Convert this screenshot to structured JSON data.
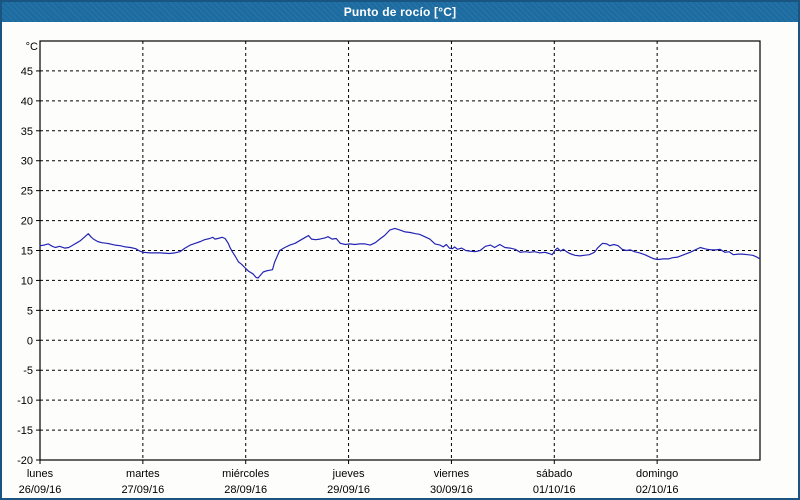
{
  "window": {
    "title": "Punto de rocío [°C]"
  },
  "colors": {
    "titlebar_bg": "#1d6ca1",
    "window_border": "#1a5480",
    "background": "#fdfefb",
    "line": "#2424b4",
    "grid": "#000000",
    "text": "#000000",
    "title_text": "#ffffff"
  },
  "chart_data": {
    "type": "line",
    "title": "Punto de rocío [°C]",
    "ylabel": "°C",
    "xlabel": "",
    "ylim": [
      -20,
      50
    ],
    "xlim_days": [
      0,
      7
    ],
    "grid": "dashed",
    "legend": "none",
    "y_ticks": [
      45,
      40,
      35,
      30,
      25,
      20,
      15,
      10,
      5,
      0,
      -5,
      -10,
      -15,
      -20
    ],
    "x_days": [
      {
        "name": "lunes",
        "date": "26/09/16"
      },
      {
        "name": "martes",
        "date": "27/09/16"
      },
      {
        "name": "miércoles",
        "date": "28/09/16"
      },
      {
        "name": "jueves",
        "date": "29/09/16"
      },
      {
        "name": "viernes",
        "date": "30/09/16"
      },
      {
        "name": "sábado",
        "date": "01/10/16"
      },
      {
        "name": "domingo",
        "date": "02/10/16"
      }
    ],
    "series": [
      {
        "name": "Punto de rocío",
        "color": "#2424b4",
        "points": [
          [
            0.0,
            15.8
          ],
          [
            0.04,
            15.9
          ],
          [
            0.08,
            16.1
          ],
          [
            0.12,
            15.7
          ],
          [
            0.15,
            15.5
          ],
          [
            0.19,
            15.7
          ],
          [
            0.24,
            15.4
          ],
          [
            0.28,
            15.5
          ],
          [
            0.32,
            15.9
          ],
          [
            0.36,
            16.3
          ],
          [
            0.39,
            16.6
          ],
          [
            0.43,
            17.2
          ],
          [
            0.47,
            17.8
          ],
          [
            0.5,
            17.2
          ],
          [
            0.52,
            16.9
          ],
          [
            0.56,
            16.5
          ],
          [
            0.6,
            16.3
          ],
          [
            0.65,
            16.2
          ],
          [
            0.68,
            16.1
          ],
          [
            0.73,
            15.9
          ],
          [
            0.78,
            15.8
          ],
          [
            0.83,
            15.6
          ],
          [
            0.88,
            15.5
          ],
          [
            0.93,
            15.3
          ],
          [
            0.97,
            14.9
          ],
          [
            1.0,
            14.7
          ],
          [
            1.07,
            14.6
          ],
          [
            1.17,
            14.6
          ],
          [
            1.26,
            14.5
          ],
          [
            1.31,
            14.6
          ],
          [
            1.36,
            14.8
          ],
          [
            1.41,
            15.4
          ],
          [
            1.46,
            15.9
          ],
          [
            1.51,
            16.2
          ],
          [
            1.56,
            16.5
          ],
          [
            1.6,
            16.8
          ],
          [
            1.65,
            17.0
          ],
          [
            1.68,
            17.2
          ],
          [
            1.7,
            16.9
          ],
          [
            1.73,
            17.0
          ],
          [
            1.77,
            17.2
          ],
          [
            1.8,
            17.0
          ],
          [
            1.83,
            16.2
          ],
          [
            1.85,
            15.4
          ],
          [
            1.87,
            14.8
          ],
          [
            1.9,
            14.0
          ],
          [
            1.93,
            13.1
          ],
          [
            1.96,
            12.7
          ],
          [
            2.0,
            12.0
          ],
          [
            2.03,
            11.5
          ],
          [
            2.07,
            11.1
          ],
          [
            2.1,
            10.5
          ],
          [
            2.12,
            10.4
          ],
          [
            2.14,
            10.8
          ],
          [
            2.17,
            11.4
          ],
          [
            2.2,
            11.6
          ],
          [
            2.23,
            11.7
          ],
          [
            2.26,
            11.8
          ],
          [
            2.28,
            13.0
          ],
          [
            2.31,
            14.2
          ],
          [
            2.33,
            15.0
          ],
          [
            2.38,
            15.5
          ],
          [
            2.43,
            15.9
          ],
          [
            2.48,
            16.2
          ],
          [
            2.53,
            16.7
          ],
          [
            2.58,
            17.2
          ],
          [
            2.61,
            17.5
          ],
          [
            2.64,
            16.9
          ],
          [
            2.68,
            16.8
          ],
          [
            2.72,
            16.9
          ],
          [
            2.77,
            17.1
          ],
          [
            2.8,
            17.3
          ],
          [
            2.84,
            16.9
          ],
          [
            2.88,
            17.0
          ],
          [
            2.92,
            16.2
          ],
          [
            2.97,
            16.0
          ],
          [
            3.01,
            16.1
          ],
          [
            3.06,
            16.0
          ],
          [
            3.11,
            16.1
          ],
          [
            3.16,
            16.1
          ],
          [
            3.21,
            15.9
          ],
          [
            3.26,
            16.3
          ],
          [
            3.31,
            17.0
          ],
          [
            3.35,
            17.5
          ],
          [
            3.4,
            18.4
          ],
          [
            3.45,
            18.7
          ],
          [
            3.5,
            18.4
          ],
          [
            3.55,
            18.1
          ],
          [
            3.6,
            18.0
          ],
          [
            3.65,
            17.8
          ],
          [
            3.69,
            17.7
          ],
          [
            3.74,
            17.3
          ],
          [
            3.79,
            16.9
          ],
          [
            3.84,
            16.1
          ],
          [
            3.89,
            15.9
          ],
          [
            3.92,
            15.6
          ],
          [
            3.95,
            16.0
          ],
          [
            3.98,
            15.4
          ],
          [
            4.01,
            15.3
          ],
          [
            4.03,
            15.6
          ],
          [
            4.06,
            15.2
          ],
          [
            4.1,
            15.4
          ],
          [
            4.14,
            15.0
          ],
          [
            4.18,
            14.9
          ],
          [
            4.23,
            14.8
          ],
          [
            4.28,
            15.0
          ],
          [
            4.33,
            15.7
          ],
          [
            4.38,
            15.9
          ],
          [
            4.42,
            15.5
          ],
          [
            4.47,
            16.0
          ],
          [
            4.52,
            15.5
          ],
          [
            4.57,
            15.4
          ],
          [
            4.62,
            15.2
          ],
          [
            4.67,
            14.7
          ],
          [
            4.72,
            14.8
          ],
          [
            4.76,
            14.7
          ],
          [
            4.81,
            14.8
          ],
          [
            4.86,
            14.6
          ],
          [
            4.91,
            14.7
          ],
          [
            4.95,
            14.5
          ],
          [
            4.98,
            14.3
          ],
          [
            5.01,
            15.1
          ],
          [
            5.03,
            15.4
          ],
          [
            5.06,
            14.9
          ],
          [
            5.09,
            15.2
          ],
          [
            5.12,
            14.8
          ],
          [
            5.15,
            14.5
          ],
          [
            5.2,
            14.2
          ],
          [
            5.25,
            14.1
          ],
          [
            5.29,
            14.2
          ],
          [
            5.34,
            14.3
          ],
          [
            5.39,
            14.7
          ],
          [
            5.42,
            15.4
          ],
          [
            5.45,
            15.9
          ],
          [
            5.47,
            16.2
          ],
          [
            5.51,
            16.1
          ],
          [
            5.54,
            15.8
          ],
          [
            5.58,
            16.0
          ],
          [
            5.62,
            15.8
          ],
          [
            5.66,
            15.2
          ],
          [
            5.7,
            15.0
          ],
          [
            5.74,
            15.1
          ],
          [
            5.78,
            14.8
          ],
          [
            5.83,
            14.6
          ],
          [
            5.88,
            14.3
          ],
          [
            5.93,
            13.9
          ],
          [
            5.97,
            13.6
          ],
          [
            6.01,
            13.5
          ],
          [
            6.06,
            13.6
          ],
          [
            6.11,
            13.6
          ],
          [
            6.15,
            13.8
          ],
          [
            6.2,
            13.9
          ],
          [
            6.26,
            14.3
          ],
          [
            6.32,
            14.7
          ],
          [
            6.37,
            15.1
          ],
          [
            6.42,
            15.5
          ],
          [
            6.46,
            15.3
          ],
          [
            6.49,
            15.2
          ],
          [
            6.53,
            15.1
          ],
          [
            6.57,
            15.1
          ],
          [
            6.61,
            15.2
          ],
          [
            6.66,
            14.7
          ],
          [
            6.7,
            14.8
          ],
          [
            6.74,
            14.3
          ],
          [
            6.79,
            14.4
          ],
          [
            6.83,
            14.4
          ],
          [
            6.88,
            14.3
          ],
          [
            6.93,
            14.2
          ],
          [
            6.97,
            13.9
          ],
          [
            6.99,
            13.7
          ]
        ]
      }
    ]
  }
}
